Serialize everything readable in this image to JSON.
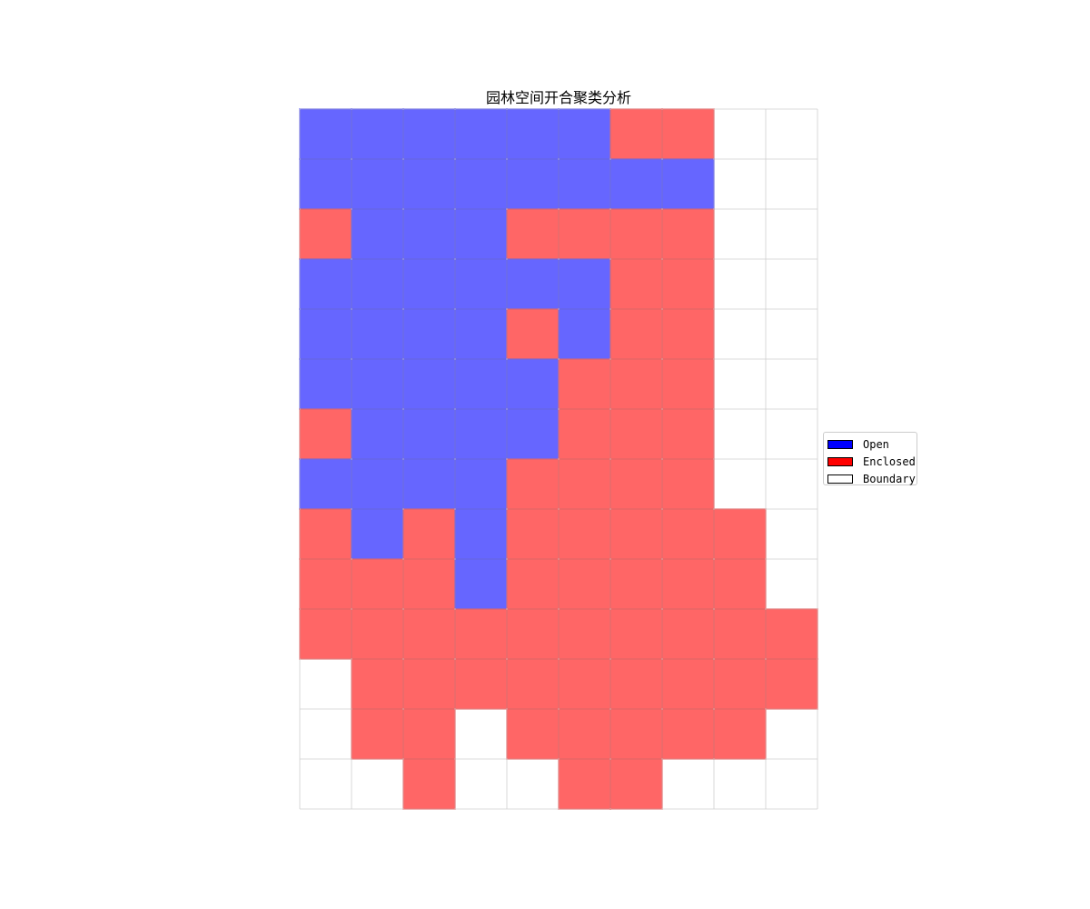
{
  "chart_data": {
    "type": "heatmap",
    "title": "园林空间开合聚类分析",
    "xlabel": "",
    "ylabel": "",
    "n_rows": 14,
    "n_cols": 10,
    "category_codes": {
      "0": "Boundary",
      "1": "Open",
      "2": "Enclosed"
    },
    "values": [
      [
        1,
        1,
        1,
        1,
        1,
        1,
        2,
        2,
        0,
        0
      ],
      [
        1,
        1,
        1,
        1,
        1,
        1,
        1,
        1,
        0,
        0
      ],
      [
        2,
        1,
        1,
        1,
        2,
        2,
        2,
        2,
        0,
        0
      ],
      [
        1,
        1,
        1,
        1,
        1,
        1,
        2,
        2,
        0,
        0
      ],
      [
        1,
        1,
        1,
        1,
        2,
        1,
        2,
        2,
        0,
        0
      ],
      [
        1,
        1,
        1,
        1,
        1,
        2,
        2,
        2,
        0,
        0
      ],
      [
        2,
        1,
        1,
        1,
        1,
        2,
        2,
        2,
        0,
        0
      ],
      [
        1,
        1,
        1,
        1,
        2,
        2,
        2,
        2,
        0,
        0
      ],
      [
        2,
        1,
        2,
        1,
        2,
        2,
        2,
        2,
        2,
        0
      ],
      [
        2,
        2,
        2,
        1,
        2,
        2,
        2,
        2,
        2,
        0
      ],
      [
        2,
        2,
        2,
        2,
        2,
        2,
        2,
        2,
        2,
        2
      ],
      [
        0,
        2,
        2,
        2,
        2,
        2,
        2,
        2,
        2,
        2
      ],
      [
        0,
        2,
        2,
        0,
        2,
        2,
        2,
        2,
        2,
        0
      ],
      [
        0,
        0,
        2,
        0,
        0,
        2,
        2,
        0,
        0,
        0
      ]
    ],
    "colors": {
      "Open": "#0000ff",
      "Enclosed": "#ff0000",
      "Boundary": "#ffffff",
      "fill_opacity": 0.6
    },
    "grid": true,
    "legend_position": "center-right",
    "legend": [
      {
        "label": "Open",
        "color": "#0000ff"
      },
      {
        "label": "Enclosed",
        "color": "#ff0000"
      },
      {
        "label": "Boundary",
        "color": "#ffffff"
      }
    ]
  }
}
